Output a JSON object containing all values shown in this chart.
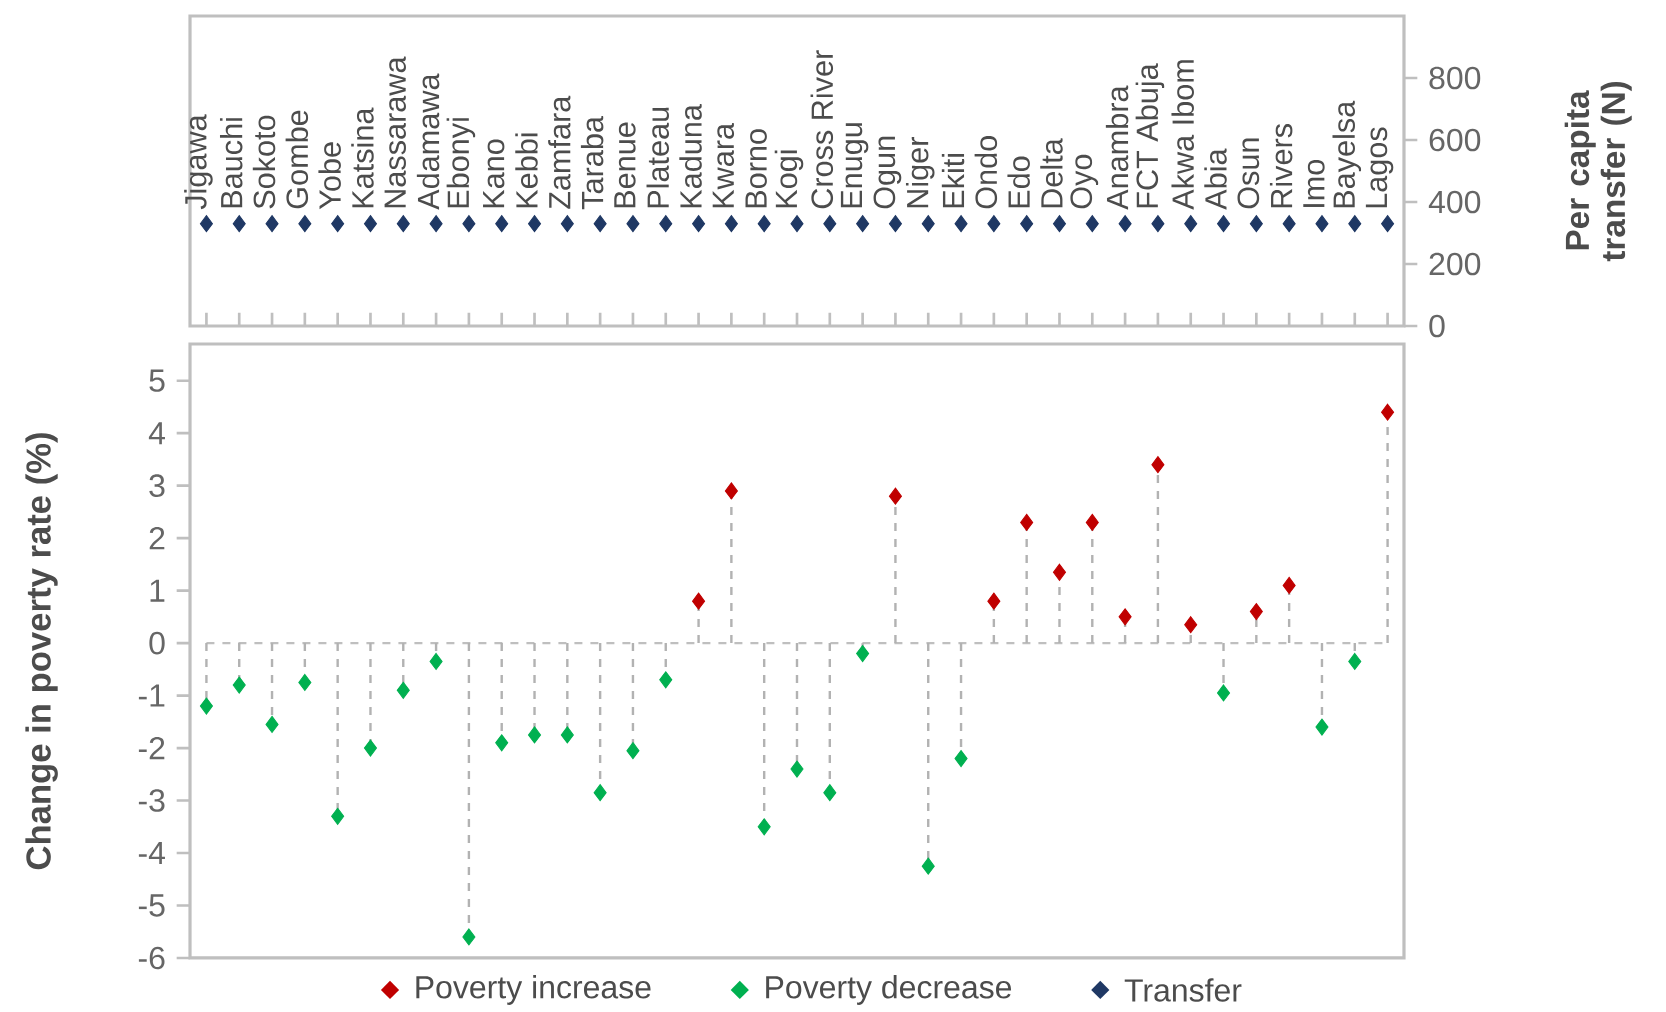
{
  "chart_data": [
    {
      "type": "scatter",
      "categories": [
        "Jigawa",
        "Bauchi",
        "Sokoto",
        "Gombe",
        "Yobe",
        "Katsina",
        "Nassarawa",
        "Adamawa",
        "Ebonyi",
        "Kano",
        "Kebbi",
        "Zamfara",
        "Taraba",
        "Benue",
        "Plateau",
        "Kaduna",
        "Kwara",
        "Borno",
        "Kogi",
        "Cross River",
        "Enugu",
        "Ogun",
        "Niger",
        "Ekiti",
        "Ondo",
        "Edo",
        "Delta",
        "Oyo",
        "Anambra",
        "FCT Abuja",
        "Akwa Ibom",
        "Abia",
        "Osun",
        "Rivers",
        "Imo",
        "Bayelsa",
        "Lagos"
      ],
      "series": [
        {
          "name": "Transfer",
          "color": "#1f3864",
          "axis": "y2",
          "values": [
            330,
            330,
            330,
            330,
            330,
            330,
            330,
            330,
            330,
            330,
            330,
            330,
            330,
            330,
            330,
            330,
            330,
            330,
            330,
            330,
            330,
            330,
            330,
            330,
            330,
            330,
            330,
            330,
            330,
            330,
            330,
            330,
            330,
            330,
            330,
            330,
            330
          ]
        }
      ],
      "y2label": "Per capita transfer (N)",
      "y2lim": [
        0,
        1000
      ],
      "y2ticks": [
        0,
        200,
        400,
        600,
        800
      ],
      "marker": "diamond",
      "legend": "bottom",
      "grid": false
    },
    {
      "type": "lollipop",
      "categories": [
        null,
        null,
        null,
        null,
        null,
        null,
        null,
        null,
        null,
        null,
        null,
        null,
        null,
        null,
        null,
        null,
        null,
        null,
        null,
        null,
        null,
        null,
        null,
        null,
        null,
        null,
        null,
        null,
        null,
        null,
        null,
        null,
        null,
        null,
        null,
        null,
        null
      ],
      "series": [
        {
          "name": "Poverty increase",
          "color": "#c00000",
          "values": [
            null,
            null,
            null,
            null,
            null,
            null,
            null,
            null,
            null,
            null,
            null,
            null,
            null,
            null,
            null,
            0.8,
            2.9,
            null,
            null,
            null,
            null,
            2.8,
            null,
            null,
            0.8,
            2.3,
            1.35,
            2.3,
            0.5,
            3.4,
            0.35,
            null,
            0.6,
            1.1,
            null,
            null,
            4.4
          ]
        },
        {
          "name": "Poverty decrease",
          "color": "#00b050",
          "values": [
            -1.2,
            -0.8,
            -1.55,
            -0.75,
            -3.3,
            -2.0,
            -0.9,
            -0.35,
            -5.6,
            -1.9,
            -1.75,
            -1.75,
            -2.85,
            -2.05,
            -0.7,
            null,
            null,
            -3.5,
            -2.4,
            -2.85,
            -0.2,
            null,
            -4.25,
            -2.2,
            null,
            null,
            null,
            null,
            null,
            null,
            null,
            -0.95,
            null,
            null,
            -1.6,
            -0.35,
            null
          ]
        }
      ],
      "ylabel": "Change in poverty rate (%)",
      "ylim": [
        -6,
        5.7
      ],
      "yticks": [
        -6,
        -5,
        -4,
        -3,
        -2,
        -1,
        0,
        1,
        2,
        3,
        4,
        5
      ],
      "ref_lines": [
        {
          "axis": "y",
          "value": 0,
          "color": "#bfbfbf",
          "line_style": "dashed"
        }
      ],
      "tick_labels": "y",
      "marker": "diamond",
      "line_style": "dashed",
      "legend": "bottom",
      "grid": false
    }
  ]
}
